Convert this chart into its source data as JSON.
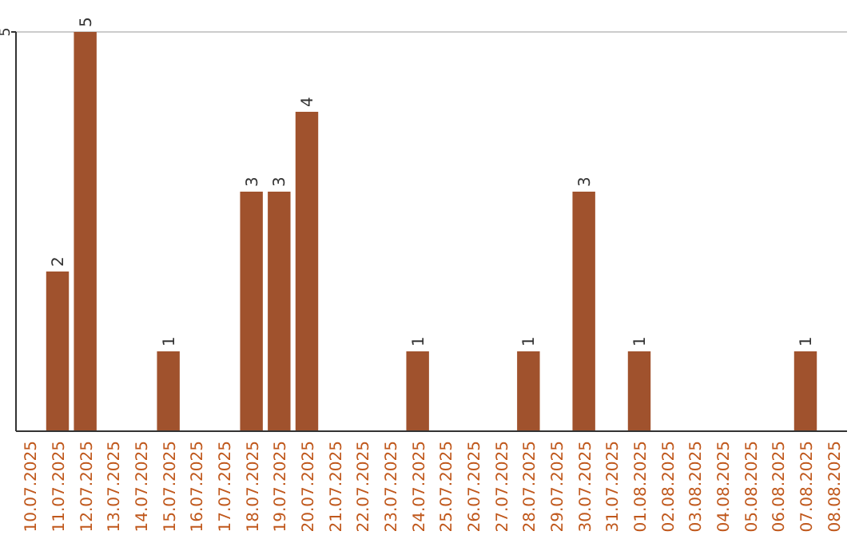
{
  "chart_data": {
    "type": "bar",
    "categories": [
      "10.07.2025",
      "11.07.2025",
      "12.07.2025",
      "13.07.2025",
      "14.07.2025",
      "15.07.2025",
      "16.07.2025",
      "17.07.2025",
      "18.07.2025",
      "19.07.2025",
      "20.07.2025",
      "21.07.2025",
      "22.07.2025",
      "23.07.2025",
      "24.07.2025",
      "25.07.2025",
      "26.07.2025",
      "27.07.2025",
      "28.07.2025",
      "29.07.2025",
      "30.07.2025",
      "31.07.2025",
      "01.08.2025",
      "02.08.2025",
      "03.08.2025",
      "04.08.2025",
      "05.08.2025",
      "06.08.2025",
      "07.08.2025",
      "08.08.2025"
    ],
    "values": [
      0,
      2,
      5,
      0,
      0,
      1,
      0,
      0,
      3,
      3,
      4,
      0,
      0,
      0,
      1,
      0,
      0,
      0,
      1,
      0,
      3,
      0,
      1,
      0,
      0,
      0,
      0,
      0,
      1,
      0
    ],
    "value_labels": [
      null,
      "2",
      "5",
      null,
      null,
      "1",
      null,
      null,
      "3",
      "3",
      "4",
      null,
      null,
      null,
      "1",
      null,
      null,
      null,
      "1",
      null,
      "3",
      null,
      "1",
      null,
      null,
      null,
      null,
      null,
      "1",
      null
    ],
    "color": "#a0522d",
    "ylim": [
      0,
      5
    ],
    "yticks": [
      5
    ],
    "ref_lines": [
      {
        "axis": "y",
        "value": 5,
        "color": "#cccccc"
      }
    ]
  }
}
